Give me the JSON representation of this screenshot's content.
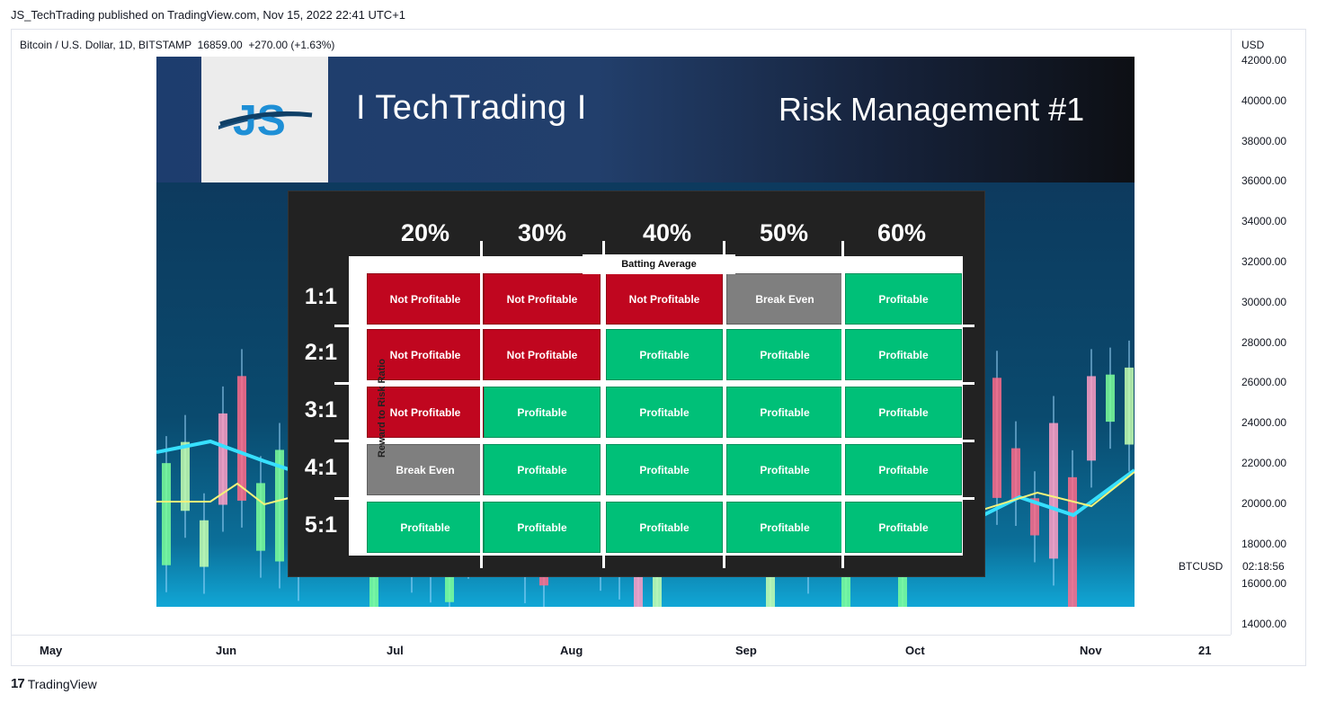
{
  "header": {
    "text": "JS_TechTrading published on TradingView.com, Nov 15, 2022 22:41 UTC+1"
  },
  "symbol": {
    "line": "Bitcoin / U.S. Dollar, 1D, BITSTAMP  16859.00  +270.00 (+1.63%)"
  },
  "price_axis": {
    "currency": "USD",
    "ticks": [
      "42000.00",
      "40000.00",
      "38000.00",
      "36000.00",
      "34000.00",
      "32000.00",
      "30000.00",
      "28000.00",
      "26000.00",
      "24000.00",
      "22000.00",
      "20000.00",
      "18000.00",
      "16000.00",
      "14000.00"
    ]
  },
  "date_axis": {
    "ticks": [
      "May",
      "Jun",
      "Jul",
      "Aug",
      "Sep",
      "Oct",
      "Nov",
      "21"
    ]
  },
  "ticker": {
    "symbol": "BTCUSD",
    "countdown": "02:18:56"
  },
  "footer": {
    "brand": "TradingView",
    "brand_mark": "17"
  },
  "banner": {
    "logo_text": "JS",
    "brand": "I  TechTrading  I",
    "title": "Risk Management #1"
  },
  "table": {
    "columns": [
      "20%",
      "30%",
      "40%",
      "50%",
      "60%"
    ],
    "column_axis_label": "Batting Average",
    "row_axis_label": "Reward to Risk Ratio",
    "rows": [
      {
        "label": "1:1",
        "cells": [
          "Not Profitable",
          "Not Profitable",
          "Not Profitable",
          "Break Even",
          "Profitable"
        ]
      },
      {
        "label": "2:1",
        "cells": [
          "Not Profitable",
          "Not Profitable",
          "Profitable",
          "Profitable",
          "Profitable"
        ]
      },
      {
        "label": "3:1",
        "cells": [
          "Not Profitable",
          "Profitable",
          "Profitable",
          "Profitable",
          "Profitable"
        ]
      },
      {
        "label": "4:1",
        "cells": [
          "Break Even",
          "Profitable",
          "Profitable",
          "Profitable",
          "Profitable"
        ]
      },
      {
        "label": "5:1",
        "cells": [
          "Profitable",
          "Profitable",
          "Profitable",
          "Profitable",
          "Profitable"
        ]
      }
    ]
  },
  "colors": {
    "not_profitable": "#c0061f",
    "profitable": "#00c078",
    "break_even": "#7f7f7f"
  }
}
